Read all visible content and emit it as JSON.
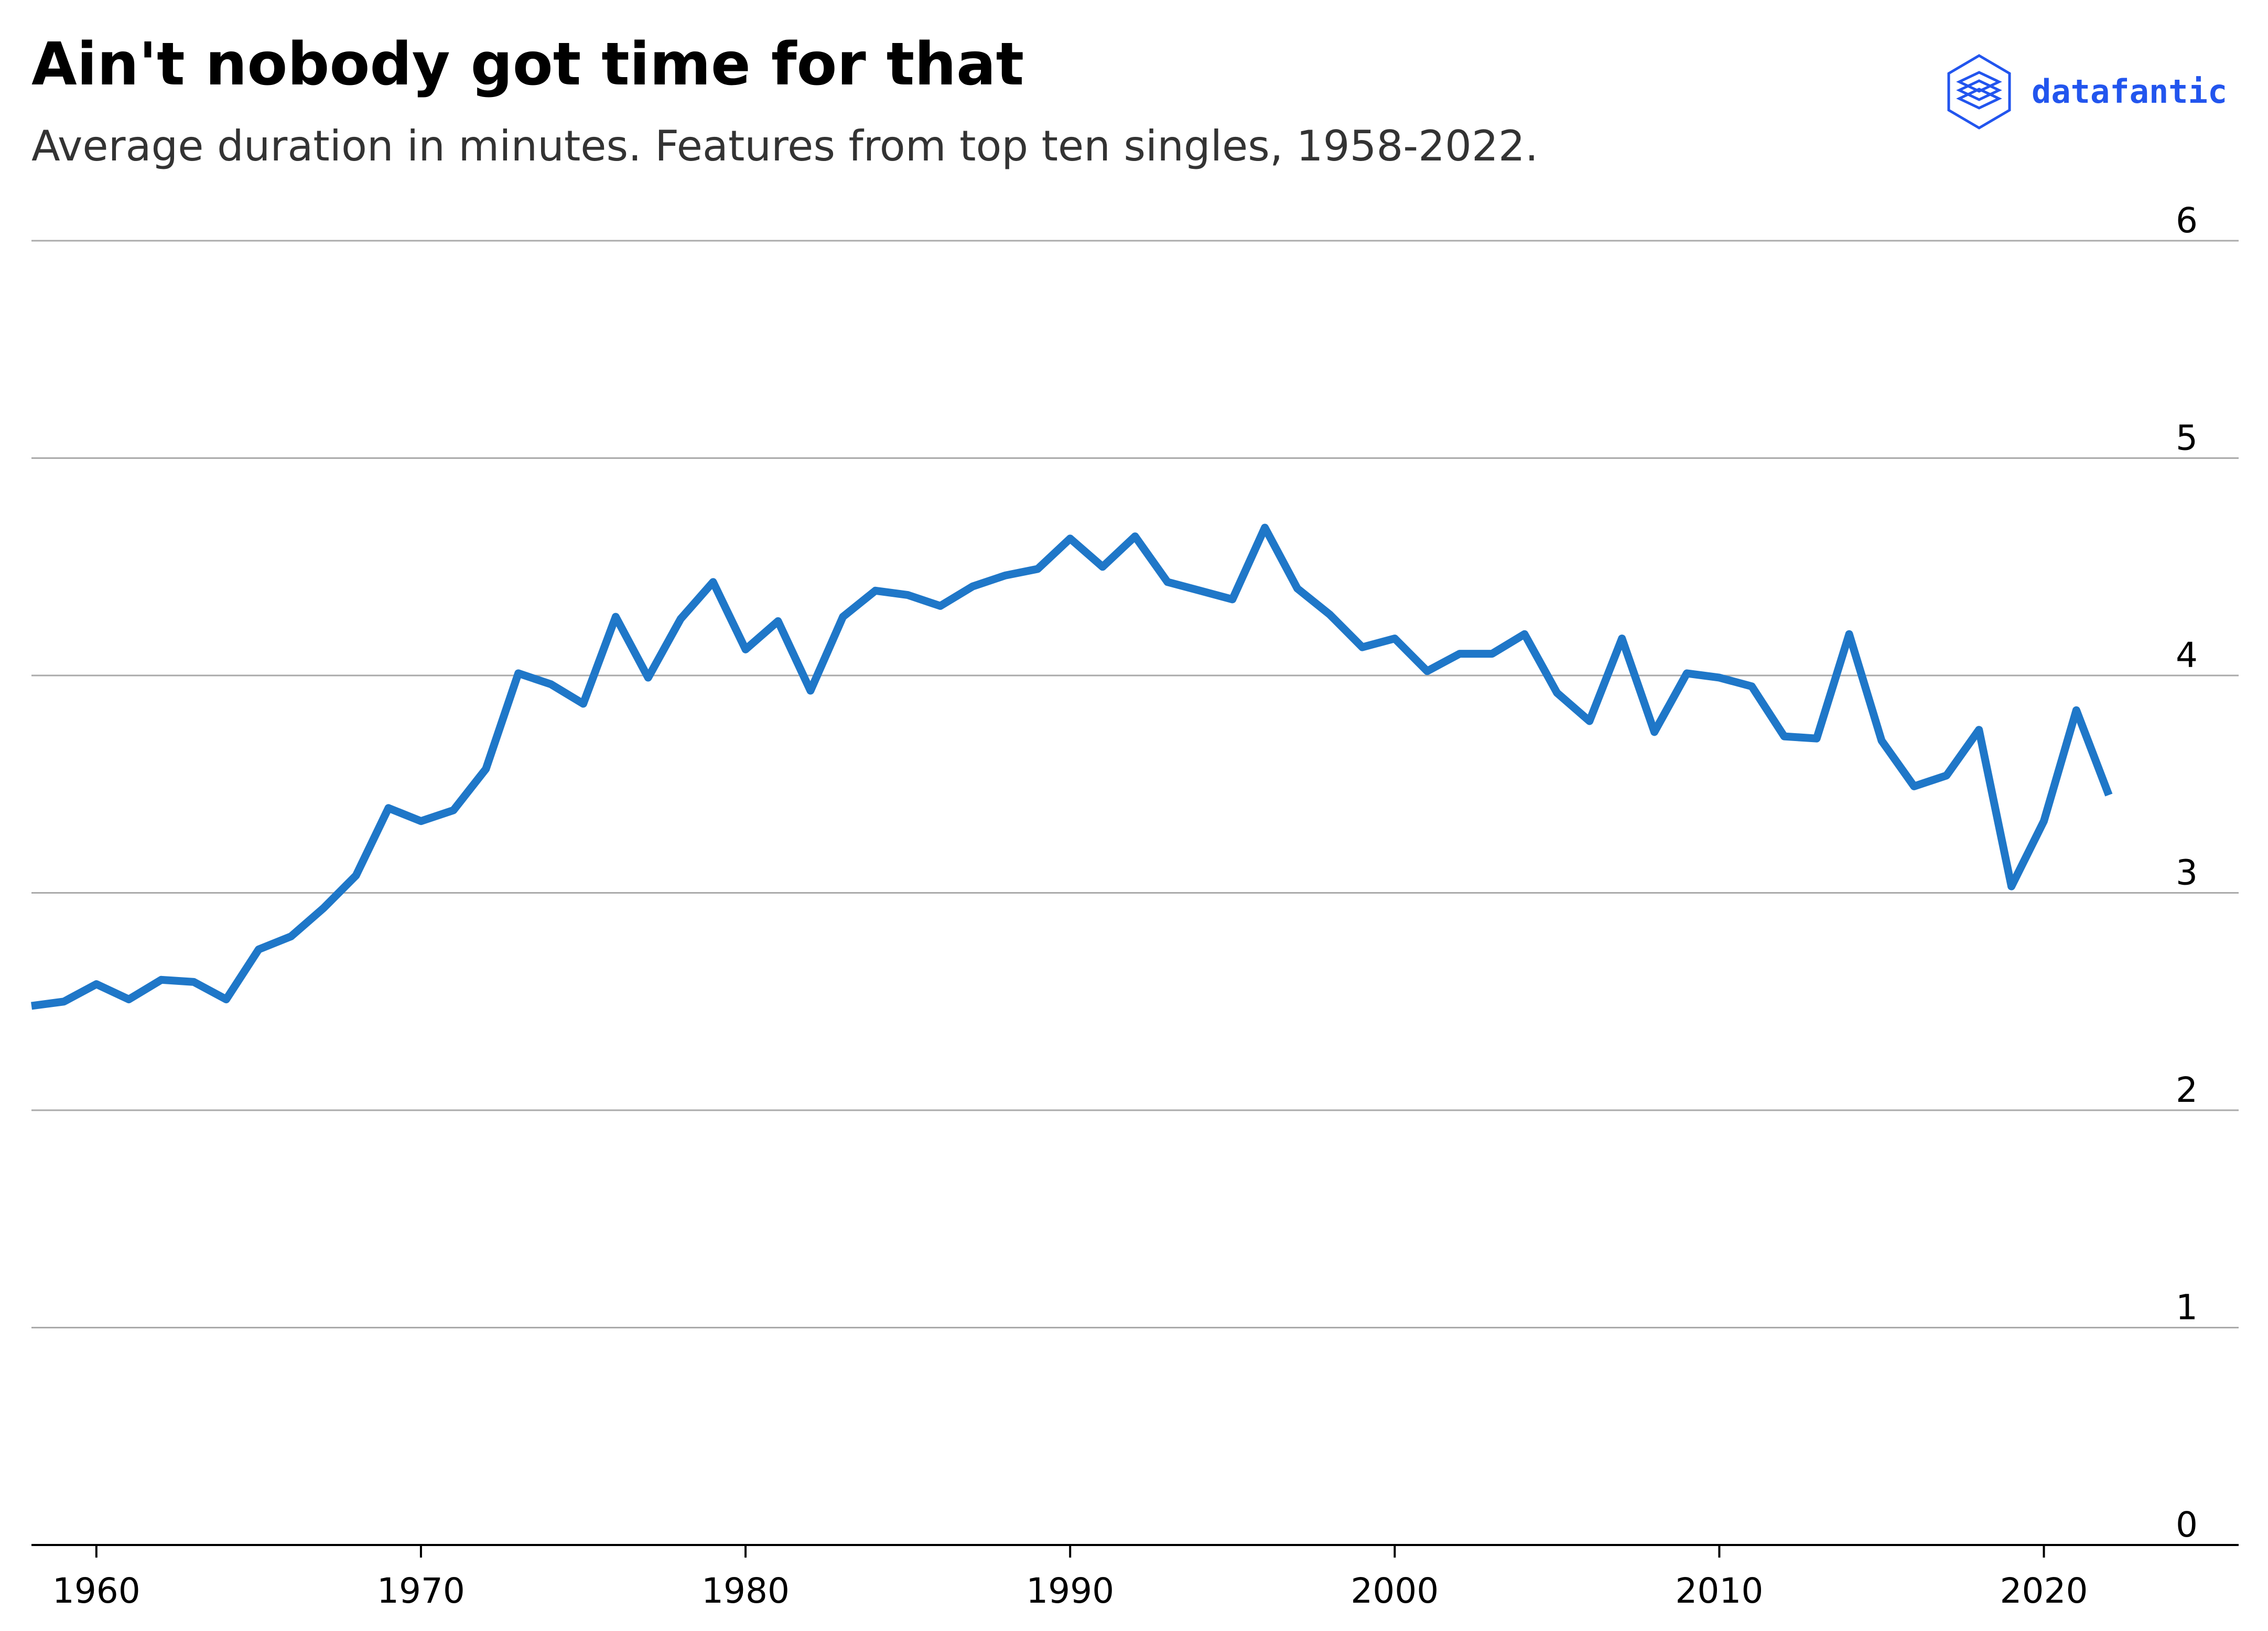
{
  "title": "Ain't nobody got time for that",
  "subtitle": "Average duration in minutes. Features from top ten singles, 1958-2022.",
  "brand": {
    "name": "datafantic",
    "icon": "layers-logo-icon",
    "color": "#2255ee"
  },
  "chart_data": {
    "type": "line",
    "title": "Ain't nobody got time for that",
    "subtitle": "Average duration in minutes. Features from top ten singles, 1958-2022.",
    "xlim": [
      1958,
      2026
    ],
    "ylim": [
      0,
      6
    ],
    "x_ticks": [
      1960,
      1970,
      1980,
      1990,
      2000,
      2010,
      2020
    ],
    "y_ticks": [
      0,
      1,
      2,
      3,
      4,
      5,
      6
    ],
    "y_axis_side": "right",
    "grid": "horizontal",
    "line_color": "#1f77c8",
    "series": [
      {
        "x": [
          1958,
          1959,
          1960,
          1961,
          1962,
          1963,
          1964,
          1965,
          1966,
          1967,
          1968,
          1969,
          1970,
          1971,
          1972,
          1973,
          1974,
          1975,
          1976,
          1977,
          1978,
          1979,
          1980,
          1981,
          1982,
          1983,
          1984,
          1985,
          1986,
          1987,
          1988,
          1989,
          1990,
          1991,
          1992,
          1993,
          1994,
          1995,
          1996,
          1997,
          1998,
          1999,
          2000,
          2001,
          2002,
          2003,
          2004,
          2005,
          2006,
          2007,
          2008,
          2009,
          2010,
          2011,
          2012,
          2013,
          2014,
          2015,
          2016,
          2017,
          2018,
          2019,
          2020,
          2021,
          2022
        ],
        "y": [
          2.48,
          2.5,
          2.58,
          2.51,
          2.6,
          2.59,
          2.51,
          2.74,
          2.8,
          2.93,
          3.08,
          3.39,
          3.33,
          3.38,
          3.57,
          4.01,
          3.96,
          3.87,
          4.27,
          3.99,
          4.26,
          4.43,
          4.12,
          4.25,
          3.93,
          4.27,
          4.39,
          4.37,
          4.32,
          4.41,
          4.46,
          4.49,
          4.63,
          4.5,
          4.64,
          4.43,
          4.39,
          4.35,
          4.68,
          4.4,
          4.28,
          4.13,
          4.17,
          4.02,
          4.1,
          4.1,
          4.19,
          3.92,
          3.79,
          4.17,
          3.74,
          4.01,
          3.99,
          3.95,
          3.72,
          3.71,
          4.19,
          3.7,
          3.49,
          3.54,
          3.75,
          3.03,
          3.33,
          3.84,
          3.45
        ]
      }
    ]
  }
}
